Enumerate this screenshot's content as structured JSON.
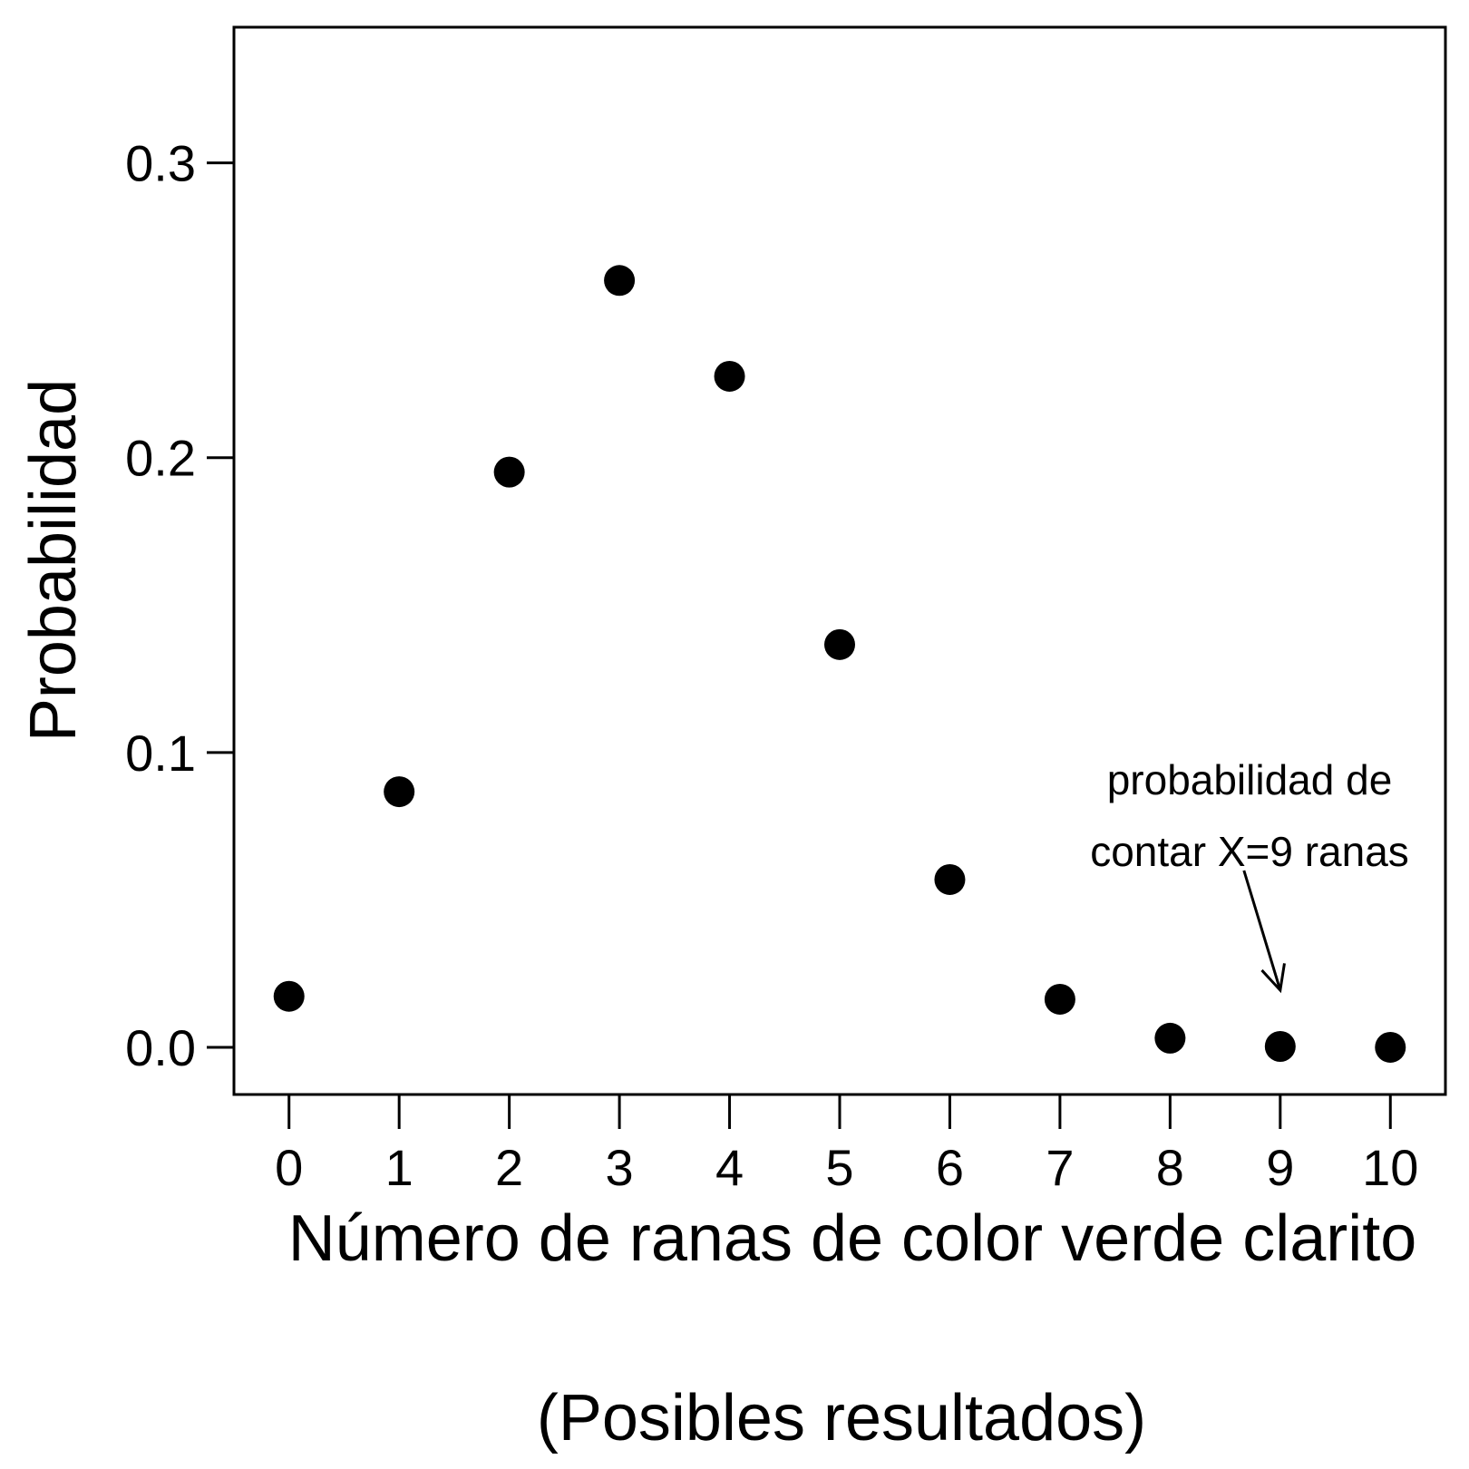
{
  "chart_data": {
    "type": "scatter",
    "x": [
      0,
      1,
      2,
      3,
      4,
      5,
      6,
      7,
      8,
      9,
      10
    ],
    "y": [
      0.0173,
      0.0867,
      0.1951,
      0.2601,
      0.2276,
      0.1366,
      0.0569,
      0.0163,
      0.0031,
      0.0003,
      0.0
    ],
    "xticks": [
      "0",
      "1",
      "2",
      "3",
      "4",
      "5",
      "6",
      "7",
      "8",
      "9",
      "10"
    ],
    "yticks": [
      "0.0",
      "0.1",
      "0.2",
      "0.3"
    ],
    "xlim": [
      -0.5,
      10.5
    ],
    "ylim": [
      -0.016,
      0.346
    ],
    "xlabel": "Número de ranas de color verde clarito",
    "xlabel2": "(Posibles resultados)",
    "ylabel": "Probabilidad",
    "annotation": {
      "line1": "probabilidad de",
      "line2": "contar X=9 ranas",
      "target_x": 9
    },
    "marker_color": "#000000",
    "grid": false
  }
}
